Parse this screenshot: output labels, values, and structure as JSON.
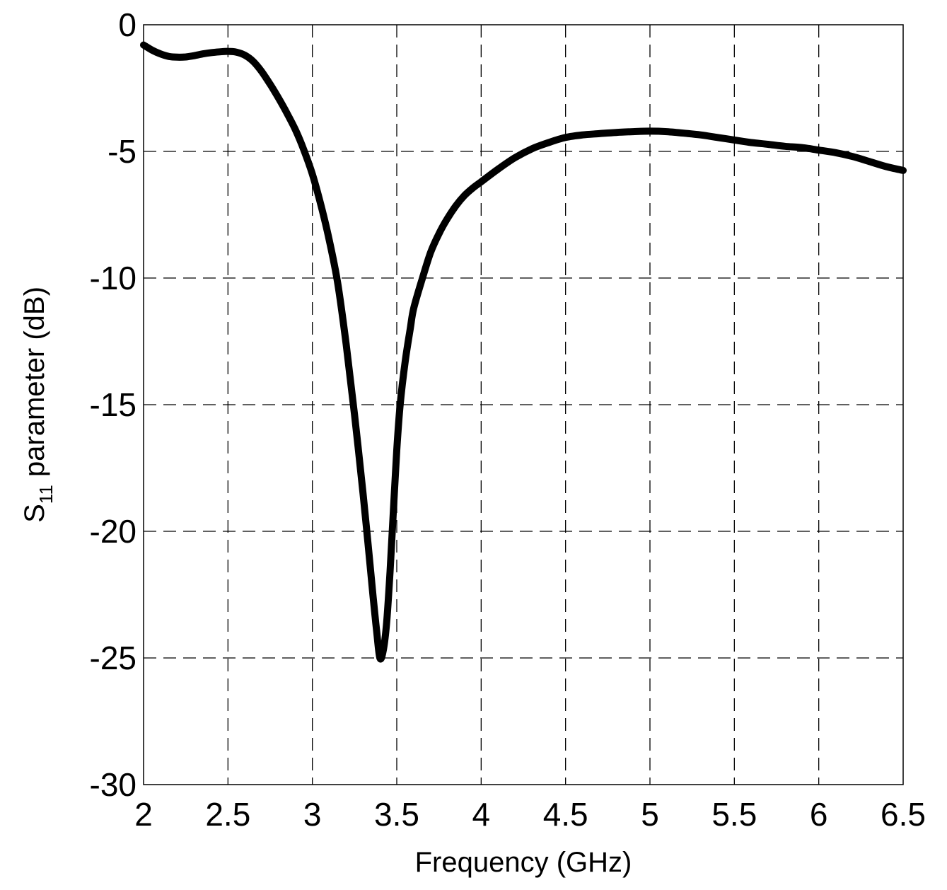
{
  "chart_data": {
    "type": "line",
    "title": "",
    "xlabel": "Frequency (GHz)",
    "ylabel": {
      "prefix": "S",
      "subscript": "11",
      "suffix": " parameter (dB)"
    },
    "xlim": [
      2,
      6.5
    ],
    "ylim": [
      -30,
      0
    ],
    "xticks": [
      2,
      2.5,
      3,
      3.5,
      4,
      4.5,
      5,
      5.5,
      6,
      6.5
    ],
    "xtick_labels": [
      "2",
      "2.5",
      "3",
      "3.5",
      "4",
      "4.5",
      "5",
      "5.5",
      "6",
      "6.5"
    ],
    "yticks": [
      0,
      -5,
      -10,
      -15,
      -20,
      -25,
      -30
    ],
    "ytick_labels": [
      "0",
      "-5",
      "-10",
      "-15",
      "-20",
      "-25",
      "-30"
    ],
    "grid": true,
    "legend": "none",
    "series": [
      {
        "color": "#000000",
        "x": [
          2.0,
          2.05,
          2.1,
          2.15,
          2.2,
          2.25,
          2.3,
          2.35,
          2.4,
          2.45,
          2.5,
          2.55,
          2.6,
          2.65,
          2.7,
          2.75,
          2.8,
          2.85,
          2.9,
          2.95,
          3.0,
          3.05,
          3.1,
          3.15,
          3.2,
          3.25,
          3.3,
          3.33,
          3.36,
          3.38,
          3.4,
          3.42,
          3.44,
          3.46,
          3.48,
          3.5,
          3.52,
          3.55,
          3.58,
          3.6,
          3.65,
          3.7,
          3.75,
          3.8,
          3.85,
          3.9,
          3.95,
          4.0,
          4.1,
          4.2,
          4.3,
          4.4,
          4.5,
          4.6,
          4.7,
          4.8,
          4.9,
          5.0,
          5.1,
          5.2,
          5.3,
          5.4,
          5.5,
          5.6,
          5.7,
          5.8,
          5.9,
          6.0,
          6.1,
          6.2,
          6.3,
          6.4,
          6.5
        ],
        "y": [
          -0.8,
          -1.0,
          -1.15,
          -1.25,
          -1.28,
          -1.27,
          -1.22,
          -1.15,
          -1.1,
          -1.07,
          -1.05,
          -1.08,
          -1.2,
          -1.45,
          -1.85,
          -2.35,
          -2.9,
          -3.5,
          -4.15,
          -4.95,
          -5.9,
          -7.1,
          -8.5,
          -10.2,
          -12.6,
          -15.4,
          -18.5,
          -20.5,
          -22.6,
          -23.9,
          -25.0,
          -24.7,
          -23.6,
          -21.6,
          -19.2,
          -16.8,
          -15.0,
          -13.3,
          -12.0,
          -11.2,
          -10.05,
          -9.0,
          -8.25,
          -7.65,
          -7.15,
          -6.75,
          -6.45,
          -6.2,
          -5.7,
          -5.25,
          -4.9,
          -4.65,
          -4.45,
          -4.35,
          -4.3,
          -4.25,
          -4.22,
          -4.2,
          -4.22,
          -4.28,
          -4.35,
          -4.45,
          -4.55,
          -4.65,
          -4.72,
          -4.8,
          -4.85,
          -4.95,
          -5.05,
          -5.2,
          -5.4,
          -5.6,
          -5.75
        ]
      }
    ]
  }
}
